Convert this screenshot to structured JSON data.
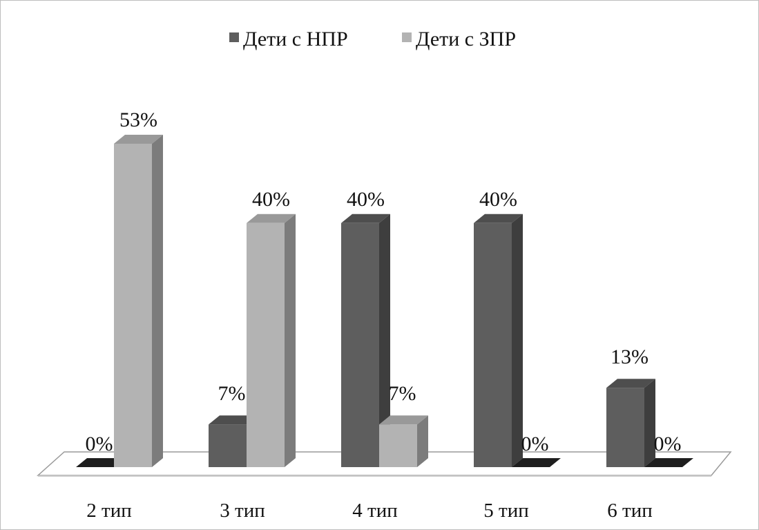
{
  "chart_data": {
    "type": "bar",
    "title": "",
    "xlabel": "",
    "ylabel": "",
    "ylim": [
      0,
      53
    ],
    "grid": false,
    "legend_placement": "top",
    "categories": [
      "2 тип",
      "3 тип",
      "4 тип",
      "5 тип",
      "6 тип"
    ],
    "series": [
      {
        "name": "Дети с НПР",
        "values": [
          0,
          7,
          40,
          40,
          13
        ],
        "labels": [
          "0%",
          "7%",
          "40%",
          "40%",
          "13%"
        ],
        "color": "#5e5e5e"
      },
      {
        "name": "Дети с ЗПР",
        "values": [
          53,
          40,
          7,
          0,
          0
        ],
        "labels": [
          "53%",
          "40%",
          "7%",
          "0%",
          "0%"
        ],
        "color": "#b3b3b3"
      }
    ]
  }
}
